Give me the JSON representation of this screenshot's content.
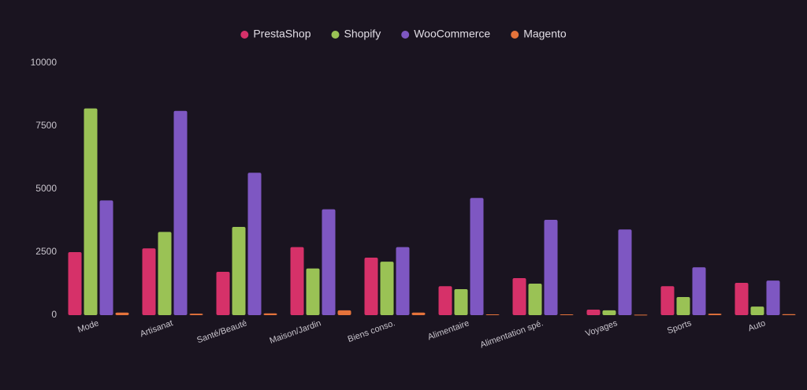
{
  "chart_data": {
    "type": "bar",
    "categories": [
      "Mode",
      "Artisanat",
      "Santé/Beauté",
      "Maison/Jardin",
      "Biens conso.",
      "Alimentaire",
      "Alimentation spé.",
      "Voyages",
      "Sports",
      "Auto"
    ],
    "series": [
      {
        "name": "PrestaShop",
        "color": "#d63169",
        "values": [
          2500,
          2650,
          1720,
          2700,
          2280,
          1150,
          1470,
          220,
          1150,
          1280
        ]
      },
      {
        "name": "Shopify",
        "color": "#9ac255",
        "values": [
          8200,
          3300,
          3500,
          1850,
          2120,
          1030,
          1250,
          190,
          720,
          340
        ]
      },
      {
        "name": "WooCommerce",
        "color": "#7e57c2",
        "values": [
          4550,
          8100,
          5650,
          4200,
          2700,
          4650,
          3780,
          3400,
          1900,
          1370
        ]
      },
      {
        "name": "Magento",
        "color": "#e5733b",
        "values": [
          100,
          60,
          70,
          190,
          100,
          30,
          30,
          20,
          60,
          40
        ]
      }
    ],
    "ylim": [
      0,
      10000
    ],
    "yticks": [
      0,
      2500,
      5000,
      7500,
      10000
    ],
    "legend": "top"
  }
}
